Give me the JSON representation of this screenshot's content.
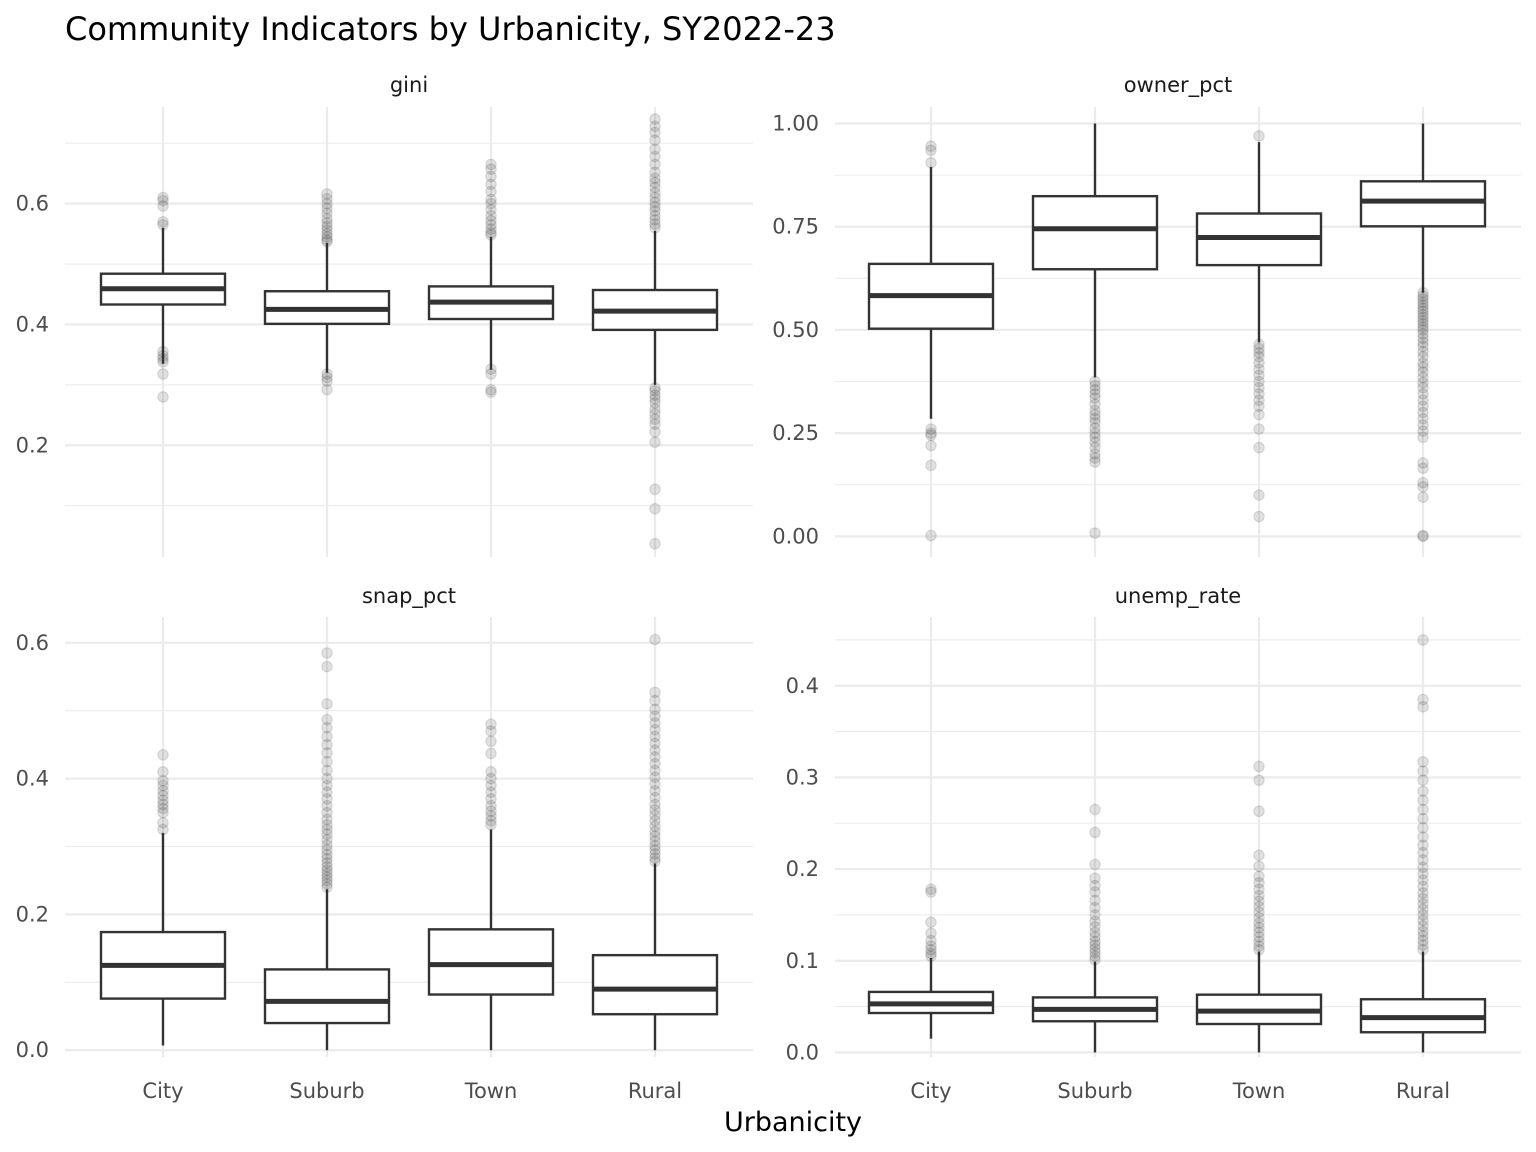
{
  "chart_data": {
    "type": "boxplot",
    "title": "Community Indicators by Urbanicity, SY2022-23",
    "xlabel": "Urbanicity",
    "ylabel": "",
    "categories": [
      "City",
      "Suburb",
      "Town",
      "Rural"
    ],
    "grid": true,
    "panels": [
      {
        "name": "gini",
        "ylim": [
          0.015,
          0.76
        ],
        "yticks": [
          0.2,
          0.4,
          0.6
        ],
        "ytick_labels": [
          "0.2",
          "0.4",
          "0.6"
        ],
        "boxes": [
          {
            "category": "City",
            "lower": 0.335,
            "q1": 0.433,
            "median": 0.459,
            "q3": 0.484,
            "upper": 0.56,
            "outliers": [
              0.61,
              0.605,
              0.596,
              0.57,
              0.565,
              0.355,
              0.348,
              0.343,
              0.338,
              0.318,
              0.28
            ]
          },
          {
            "category": "Suburb",
            "lower": 0.32,
            "q1": 0.401,
            "median": 0.425,
            "q3": 0.455,
            "upper": 0.535,
            "outliers": [
              0.616,
              0.608,
              0.6,
              0.592,
              0.584,
              0.575,
              0.568,
              0.562,
              0.556,
              0.55,
              0.545,
              0.54,
              0.537,
              0.318,
              0.312,
              0.306,
              0.292
            ]
          },
          {
            "category": "Town",
            "lower": 0.325,
            "q1": 0.409,
            "median": 0.437,
            "q3": 0.463,
            "upper": 0.545,
            "outliers": [
              0.665,
              0.657,
              0.645,
              0.632,
              0.62,
              0.607,
              0.6,
              0.59,
              0.58,
              0.572,
              0.565,
              0.558,
              0.552,
              0.548,
              0.326,
              0.318,
              0.292,
              0.288
            ]
          },
          {
            "category": "Rural",
            "lower": 0.3,
            "q1": 0.391,
            "median": 0.422,
            "q3": 0.457,
            "upper": 0.555,
            "outliers": [
              0.74,
              0.728,
              0.718,
              0.705,
              0.69,
              0.678,
              0.665,
              0.652,
              0.642,
              0.635,
              0.627,
              0.618,
              0.61,
              0.602,
              0.595,
              0.588,
              0.58,
              0.573,
              0.566,
              0.56,
              0.295,
              0.29,
              0.283,
              0.277,
              0.27,
              0.26,
              0.252,
              0.243,
              0.235,
              0.222,
              0.205,
              0.127,
              0.095,
              0.037
            ]
          }
        ]
      },
      {
        "name": "owner_pct",
        "ylim": [
          -0.05,
          1.04
        ],
        "yticks": [
          0.0,
          0.25,
          0.5,
          0.75,
          1.0
        ],
        "ytick_labels": [
          "0.00",
          "0.25",
          "0.50",
          "0.75",
          "1.00"
        ],
        "boxes": [
          {
            "category": "City",
            "lower": 0.285,
            "q1": 0.503,
            "median": 0.583,
            "q3": 0.66,
            "upper": 0.895,
            "outliers": [
              0.945,
              0.935,
              0.905,
              0.26,
              0.25,
              0.245,
              0.22,
              0.172,
              0.002
            ]
          },
          {
            "category": "Suburb",
            "lower": 0.385,
            "q1": 0.647,
            "median": 0.745,
            "q3": 0.824,
            "upper": 1.0,
            "outliers": [
              0.375,
              0.365,
              0.355,
              0.345,
              0.335,
              0.32,
              0.305,
              0.295,
              0.285,
              0.275,
              0.262,
              0.25,
              0.24,
              0.228,
              0.215,
              0.2,
              0.19,
              0.18,
              0.008
            ]
          },
          {
            "category": "Town",
            "lower": 0.47,
            "q1": 0.657,
            "median": 0.724,
            "q3": 0.782,
            "upper": 0.955,
            "outliers": [
              0.97,
              0.465,
              0.455,
              0.445,
              0.435,
              0.42,
              0.405,
              0.39,
              0.375,
              0.36,
              0.345,
              0.33,
              0.315,
              0.295,
              0.26,
              0.215,
              0.1,
              0.048
            ]
          },
          {
            "category": "Rural",
            "lower": 0.59,
            "q1": 0.751,
            "median": 0.812,
            "q3": 0.86,
            "upper": 1.0,
            "outliers": [
              0.59,
              0.582,
              0.575,
              0.567,
              0.56,
              0.552,
              0.545,
              0.537,
              0.53,
              0.522,
              0.515,
              0.507,
              0.5,
              0.49,
              0.48,
              0.47,
              0.46,
              0.447,
              0.435,
              0.42,
              0.41,
              0.398,
              0.385,
              0.372,
              0.36,
              0.345,
              0.33,
              0.315,
              0.3,
              0.285,
              0.27,
              0.255,
              0.24,
              0.178,
              0.165,
              0.13,
              0.12,
              0.095,
              0.002,
              0.0
            ]
          }
        ]
      },
      {
        "name": "snap_pct",
        "ylim": [
          -0.01,
          0.638
        ],
        "yticks": [
          0.0,
          0.2,
          0.4,
          0.6
        ],
        "ytick_labels": [
          "0.0",
          "0.2",
          "0.4",
          "0.6"
        ],
        "boxes": [
          {
            "category": "City",
            "lower": 0.007,
            "q1": 0.076,
            "median": 0.125,
            "q3": 0.174,
            "upper": 0.32,
            "outliers": [
              0.435,
              0.41,
              0.397,
              0.39,
              0.382,
              0.375,
              0.368,
              0.362,
              0.356,
              0.35,
              0.335,
              0.325
            ]
          },
          {
            "category": "Suburb",
            "lower": 0.0,
            "q1": 0.04,
            "median": 0.072,
            "q3": 0.119,
            "upper": 0.237,
            "outliers": [
              0.585,
              0.565,
              0.51,
              0.487,
              0.475,
              0.462,
              0.45,
              0.438,
              0.425,
              0.412,
              0.4,
              0.39,
              0.38,
              0.37,
              0.36,
              0.35,
              0.34,
              0.332,
              0.325,
              0.318,
              0.31,
              0.302,
              0.295,
              0.288,
              0.282,
              0.276,
              0.27,
              0.265,
              0.26,
              0.255,
              0.25,
              0.245,
              0.24
            ]
          },
          {
            "category": "Town",
            "lower": 0.0,
            "q1": 0.082,
            "median": 0.126,
            "q3": 0.178,
            "upper": 0.325,
            "outliers": [
              0.48,
              0.47,
              0.455,
              0.437,
              0.41,
              0.4,
              0.39,
              0.38,
              0.37,
              0.36,
              0.352,
              0.345,
              0.338,
              0.332
            ]
          },
          {
            "category": "Rural",
            "lower": 0.0,
            "q1": 0.053,
            "median": 0.09,
            "q3": 0.14,
            "upper": 0.275,
            "outliers": [
              0.605,
              0.527,
              0.515,
              0.502,
              0.492,
              0.482,
              0.472,
              0.462,
              0.452,
              0.442,
              0.432,
              0.422,
              0.412,
              0.402,
              0.392,
              0.382,
              0.372,
              0.362,
              0.354,
              0.346,
              0.338,
              0.33,
              0.322,
              0.315,
              0.308,
              0.301,
              0.295,
              0.289,
              0.283,
              0.278
            ]
          }
        ]
      },
      {
        "name": "unemp_rate",
        "ylim": [
          -0.005,
          0.475
        ],
        "yticks": [
          0.0,
          0.1,
          0.2,
          0.3,
          0.4
        ],
        "ytick_labels": [
          "0.0",
          "0.1",
          "0.2",
          "0.3",
          "0.4"
        ],
        "boxes": [
          {
            "category": "City",
            "lower": 0.015,
            "q1": 0.043,
            "median": 0.053,
            "q3": 0.066,
            "upper": 0.103,
            "outliers": [
              0.178,
              0.175,
              0.142,
              0.13,
              0.122,
              0.116,
              0.112,
              0.108,
              0.105
            ]
          },
          {
            "category": "Suburb",
            "lower": 0.0,
            "q1": 0.034,
            "median": 0.047,
            "q3": 0.06,
            "upper": 0.099,
            "outliers": [
              0.265,
              0.24,
              0.205,
              0.19,
              0.182,
              0.175,
              0.166,
              0.158,
              0.15,
              0.143,
              0.137,
              0.131,
              0.126,
              0.121,
              0.117,
              0.113,
              0.109,
              0.105,
              0.101
            ]
          },
          {
            "category": "Town",
            "lower": 0.0,
            "q1": 0.031,
            "median": 0.045,
            "q3": 0.063,
            "upper": 0.11,
            "outliers": [
              0.312,
              0.297,
              0.263,
              0.215,
              0.203,
              0.192,
              0.185,
              0.178,
              0.171,
              0.165,
              0.159,
              0.153,
              0.147,
              0.141,
              0.136,
              0.131,
              0.126,
              0.121,
              0.116,
              0.112
            ]
          },
          {
            "category": "Rural",
            "lower": 0.0,
            "q1": 0.022,
            "median": 0.038,
            "q3": 0.058,
            "upper": 0.11,
            "outliers": [
              0.45,
              0.385,
              0.377,
              0.317,
              0.307,
              0.297,
              0.285,
              0.275,
              0.265,
              0.255,
              0.245,
              0.235,
              0.226,
              0.218,
              0.21,
              0.202,
              0.195,
              0.188,
              0.181,
              0.174,
              0.168,
              0.162,
              0.156,
              0.15,
              0.144,
              0.138,
              0.132,
              0.127,
              0.122,
              0.117,
              0.112
            ]
          }
        ]
      }
    ]
  },
  "colors": {
    "box_line": "#333333",
    "grid": "#ebebeb",
    "tick_text": "#4d4d4d",
    "background": "#ffffff"
  }
}
